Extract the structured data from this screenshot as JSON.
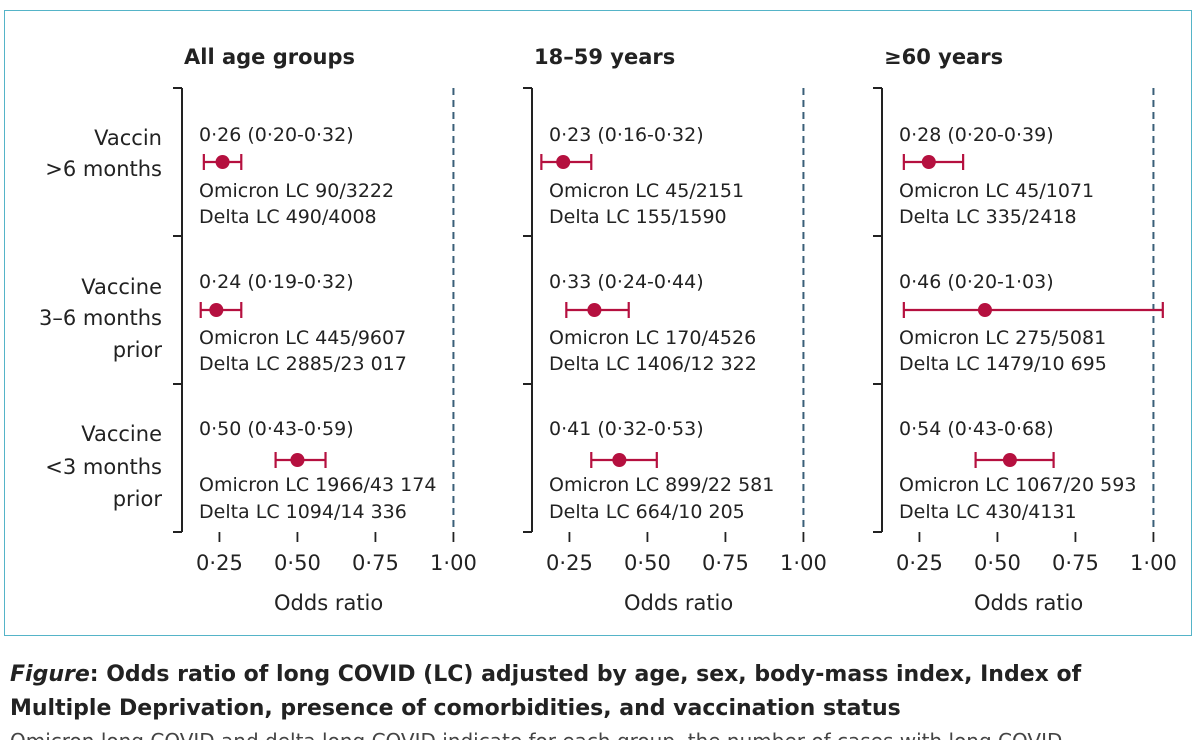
{
  "chart_data": {
    "type": "forest",
    "xlabel": "Odds ratio",
    "xticks": [
      "0·25",
      "0·50",
      "0·75",
      "1·00"
    ],
    "xtick_values": [
      0.25,
      0.5,
      0.75,
      1.0
    ],
    "xlim": [
      0.13,
      1.07
    ],
    "reference_line": 1.0,
    "row_labels": [
      [
        "Vaccin",
        ">6 months"
      ],
      [
        "Vaccine",
        "3–6 months",
        "prior"
      ],
      [
        "Vaccine",
        "<3 months",
        "prior"
      ]
    ],
    "panels": [
      {
        "title": "All age groups",
        "rows": [
          {
            "or": 0.26,
            "lo": 0.2,
            "hi": 0.32,
            "or_text": "0·26 (0·20-0·32)",
            "omicron": "Omicron LC 90/3222",
            "delta": "Delta LC 490/4008"
          },
          {
            "or": 0.24,
            "lo": 0.19,
            "hi": 0.32,
            "or_text": "0·24 (0·19-0·32)",
            "omicron": "Omicron LC 445/9607",
            "delta": "Delta LC 2885/23 017"
          },
          {
            "or": 0.5,
            "lo": 0.43,
            "hi": 0.59,
            "or_text": "0·50 (0·43-0·59)",
            "omicron": "Omicron LC 1966/43 174",
            "delta": "Delta LC 1094/14 336"
          }
        ]
      },
      {
        "title": "18–59 years",
        "rows": [
          {
            "or": 0.23,
            "lo": 0.16,
            "hi": 0.32,
            "or_text": "0·23 (0·16-0·32)",
            "omicron": "Omicron LC 45/2151",
            "delta": "Delta LC 155/1590"
          },
          {
            "or": 0.33,
            "lo": 0.24,
            "hi": 0.44,
            "or_text": "0·33 (0·24-0·44)",
            "omicron": "Omicron LC 170/4526",
            "delta": "Delta LC 1406/12 322"
          },
          {
            "or": 0.41,
            "lo": 0.32,
            "hi": 0.53,
            "or_text": "0·41 (0·32-0·53)",
            "omicron": "Omicron LC 899/22 581",
            "delta": "Delta LC 664/10 205"
          }
        ]
      },
      {
        "title": "≥60 years",
        "rows": [
          {
            "or": 0.28,
            "lo": 0.2,
            "hi": 0.39,
            "or_text": "0·28 (0·20-0·39)",
            "omicron": "Omicron LC 45/1071",
            "delta": "Delta LC 335/2418"
          },
          {
            "or": 0.46,
            "lo": 0.2,
            "hi": 1.03,
            "or_text": "0·46 (0·20-1·03)",
            "omicron": "Omicron LC 275/5081",
            "delta": "Delta LC 1479/10 695"
          },
          {
            "or": 0.54,
            "lo": 0.43,
            "hi": 0.68,
            "or_text": "0·54 (0·43-0·68)",
            "omicron": "Omicron LC 1067/20 593",
            "delta": "Delta LC 430/4131"
          }
        ]
      }
    ]
  },
  "colors": {
    "marker": "#b5103f",
    "axis": "#222222",
    "reference": "#3a5f78",
    "frame": "#55b4c8"
  },
  "caption": {
    "lead": "Figure",
    "text": ": Odds ratio of long COVID (LC) adjusted by age, sex, body-mass index, Index of Multiple Deprivation, presence of comorbidities, and vaccination status",
    "cut_line": "Omicron long COVID and delta long COVID indicate for each group, the number of cases with long COVID"
  }
}
